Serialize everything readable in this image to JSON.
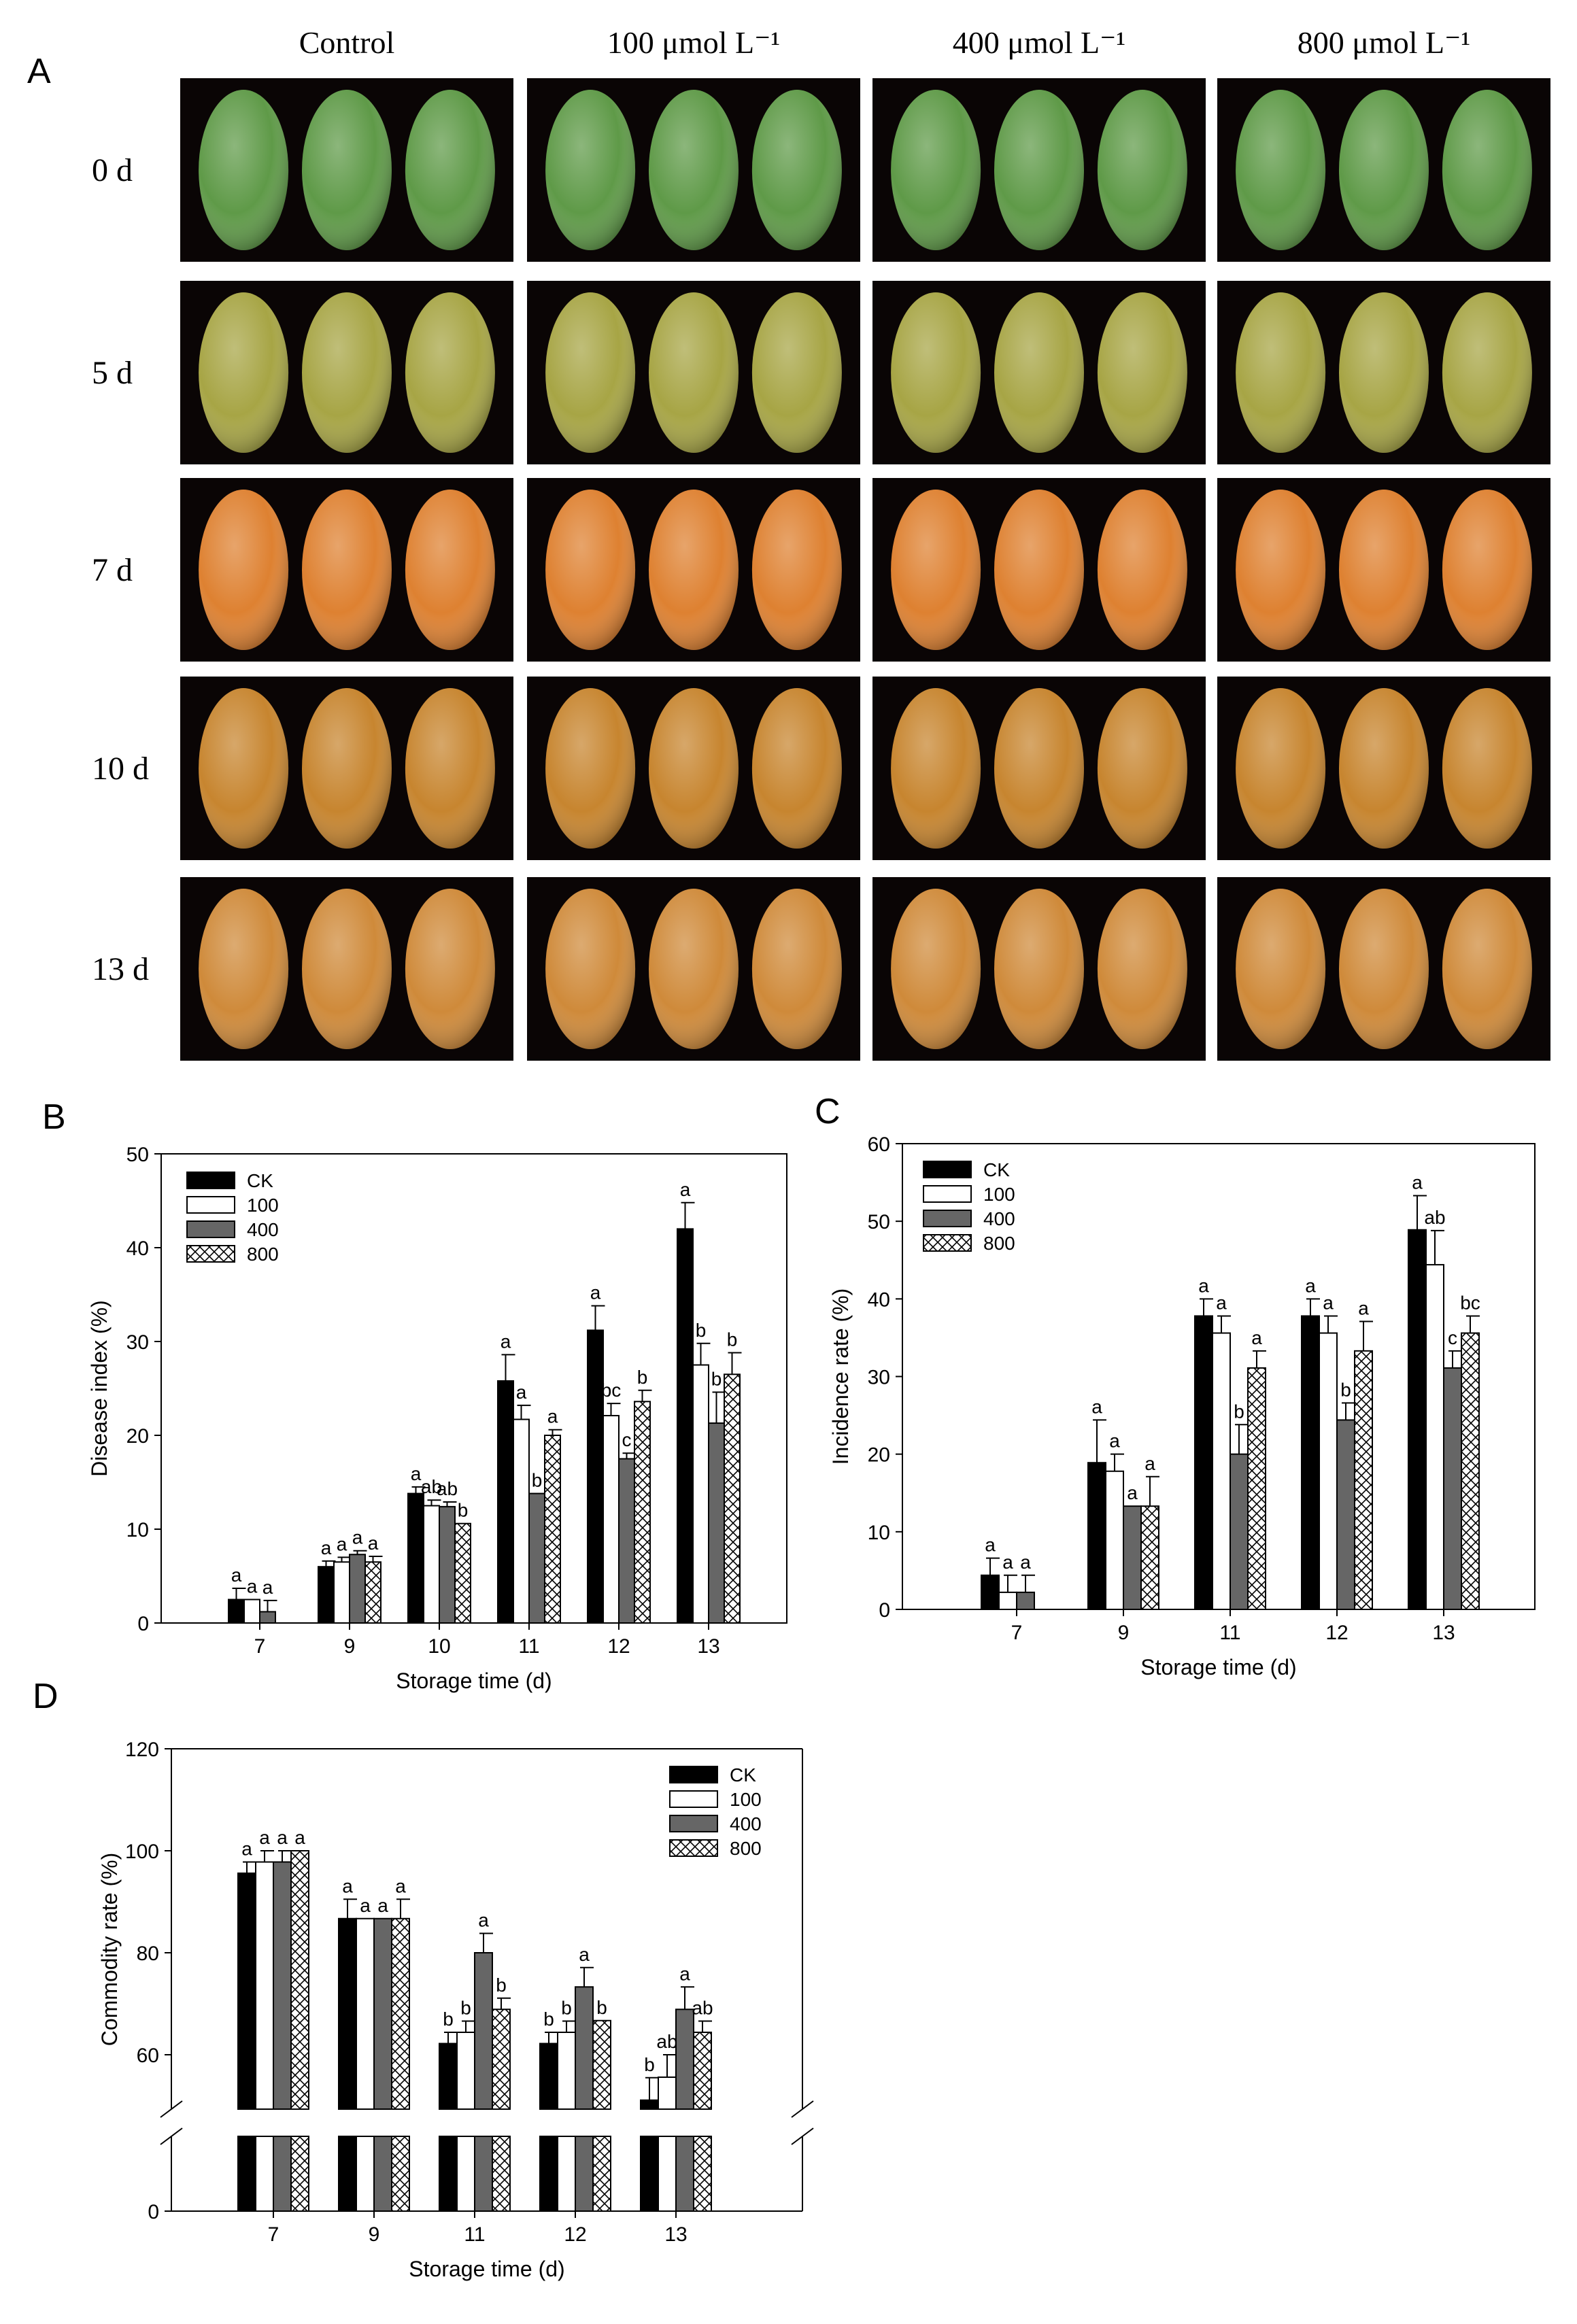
{
  "panel_a": {
    "letter": "A",
    "columns": [
      "Control",
      "100 μmol L⁻¹",
      "400 μmol L⁻¹",
      "800 μmol L⁻¹"
    ],
    "rows": [
      "0 d",
      "5 d",
      "7 d",
      "10 d",
      "13 d"
    ],
    "colors": {
      "0 d": "#5f9a48",
      "5 d": "#a7a545",
      "7 d": "#de8131",
      "10 d": "#c7852f",
      "13 d": "#cf8a3a"
    }
  },
  "panel_letters": {
    "b": "B",
    "c": "C",
    "d": "D"
  },
  "legend": [
    "CK",
    "100",
    "400",
    "800"
  ],
  "chart_data": [
    {
      "id": "B",
      "type": "bar",
      "xlabel": "Storage time (d)",
      "ylabel": "Disease index (%)",
      "ylim": [
        0,
        50
      ],
      "yticks": [
        0,
        10,
        20,
        30,
        40,
        50
      ],
      "categories": [
        "7",
        "9",
        "10",
        "11",
        "12",
        "13"
      ],
      "series": [
        {
          "name": "CK",
          "values": [
            2.5,
            6.0,
            13.8,
            25.8,
            31.2,
            42.0
          ],
          "errors": [
            1.2,
            0.6,
            0.7,
            2.8,
            2.6,
            2.8
          ],
          "labels": [
            "a",
            "a",
            "a",
            "a",
            "a",
            "a"
          ]
        },
        {
          "name": "100",
          "values": [
            2.5,
            6.5,
            12.5,
            21.7,
            22.1,
            27.5
          ],
          "errors": [
            0.0,
            0.5,
            0.6,
            1.5,
            1.3,
            2.3
          ],
          "labels": [
            "a",
            "a",
            "ab",
            "a",
            "bc",
            "b"
          ]
        },
        {
          "name": "400",
          "values": [
            1.2,
            7.3,
            12.4,
            13.8,
            17.5,
            21.3
          ],
          "errors": [
            1.2,
            0.4,
            0.5,
            0.0,
            0.6,
            3.3
          ],
          "labels": [
            "a",
            "a",
            "ab",
            "b",
            "c",
            "b"
          ]
        },
        {
          "name": "800",
          "values": [
            null,
            6.5,
            10.6,
            20.0,
            23.6,
            26.5
          ],
          "errors": [
            0,
            0.6,
            0.0,
            0.6,
            1.2,
            2.3
          ],
          "labels": [
            "",
            "a",
            "b",
            "a",
            "b",
            "b"
          ]
        }
      ]
    },
    {
      "id": "C",
      "type": "bar",
      "xlabel": "Storage time (d)",
      "ylabel": "Incidence rate (%)",
      "ylim": [
        0,
        60
      ],
      "yticks": [
        0,
        10,
        20,
        30,
        40,
        50,
        60
      ],
      "categories": [
        "7",
        "9",
        "11",
        "12",
        "13"
      ],
      "series": [
        {
          "name": "CK",
          "values": [
            4.4,
            18.9,
            37.8,
            37.8,
            48.9
          ],
          "errors": [
            2.2,
            5.5,
            2.2,
            2.2,
            4.4
          ],
          "labels": [
            "a",
            "a",
            "a",
            "a",
            "a"
          ]
        },
        {
          "name": "100",
          "values": [
            2.2,
            17.8,
            35.6,
            35.6,
            44.4
          ],
          "errors": [
            2.2,
            2.2,
            2.2,
            2.2,
            4.4
          ],
          "labels": [
            "a",
            "a",
            "a",
            "a",
            "ab"
          ]
        },
        {
          "name": "400",
          "values": [
            2.2,
            13.3,
            20.0,
            24.4,
            31.1
          ],
          "errors": [
            2.2,
            0.0,
            3.8,
            2.2,
            2.2
          ],
          "labels": [
            "a",
            "a",
            "b",
            "b",
            "c"
          ]
        },
        {
          "name": "800",
          "values": [
            null,
            13.3,
            31.1,
            33.3,
            35.6
          ],
          "errors": [
            0,
            3.8,
            2.2,
            3.8,
            2.2
          ],
          "labels": [
            "",
            "a",
            "a",
            "a",
            "bc"
          ]
        }
      ]
    },
    {
      "id": "D",
      "type": "bar",
      "xlabel": "Storage time (d)",
      "ylabel": "Commodity rate (%)",
      "ylim": [
        0,
        120
      ],
      "axis_break": [
        50,
        60
      ],
      "yticks": [
        0,
        60,
        80,
        100,
        120
      ],
      "categories": [
        "7",
        "9",
        "11",
        "12",
        "13"
      ],
      "series": [
        {
          "name": "CK",
          "values": [
            95.6,
            86.7,
            62.2,
            62.2,
            51.1
          ],
          "errors": [
            2.2,
            3.8,
            2.2,
            2.2,
            4.4
          ],
          "labels": [
            "a",
            "a",
            "b",
            "b",
            "b"
          ]
        },
        {
          "name": "100",
          "values": [
            97.8,
            86.7,
            64.4,
            64.4,
            55.6
          ],
          "errors": [
            2.2,
            0.0,
            2.2,
            2.2,
            4.4
          ],
          "labels": [
            "a",
            "a",
            "b",
            "b",
            "ab"
          ]
        },
        {
          "name": "400",
          "values": [
            97.8,
            86.7,
            80.0,
            73.3,
            68.9
          ],
          "errors": [
            2.2,
            0.0,
            3.8,
            3.8,
            4.4
          ],
          "labels": [
            "a",
            "a",
            "a",
            "a",
            "a"
          ]
        },
        {
          "name": "800",
          "values": [
            100.0,
            86.7,
            68.9,
            66.7,
            64.4
          ],
          "errors": [
            0.0,
            3.8,
            2.2,
            0.0,
            2.2
          ],
          "labels": [
            "a",
            "a",
            "b",
            "b",
            "ab"
          ]
        }
      ]
    }
  ]
}
